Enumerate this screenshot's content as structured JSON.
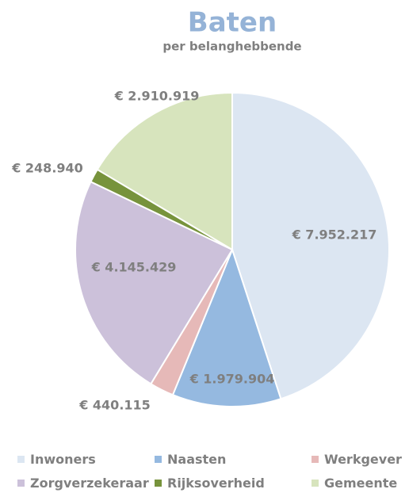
{
  "chart_data": {
    "type": "pie",
    "title": "Baten",
    "subtitle": "per belanghebbende",
    "categories": [
      "Inwoners",
      "Naasten",
      "Werkgever",
      "Zorgverzekeraar",
      "Rijksoverheid",
      "Gemeente"
    ],
    "values": [
      7952217,
      1979904,
      440115,
      4145429,
      248940,
      2910919
    ],
    "value_labels": [
      "€ 7.952.217",
      "€ 1.979.904",
      "€ 440.115",
      "€ 4.145.429",
      "€ 248.940",
      "€ 2.910.919"
    ],
    "colors": [
      "#dce6f2",
      "#95b9e0",
      "#e6b9b8",
      "#ccc1da",
      "#77933c",
      "#d7e4bd"
    ],
    "legend": "bottom"
  }
}
